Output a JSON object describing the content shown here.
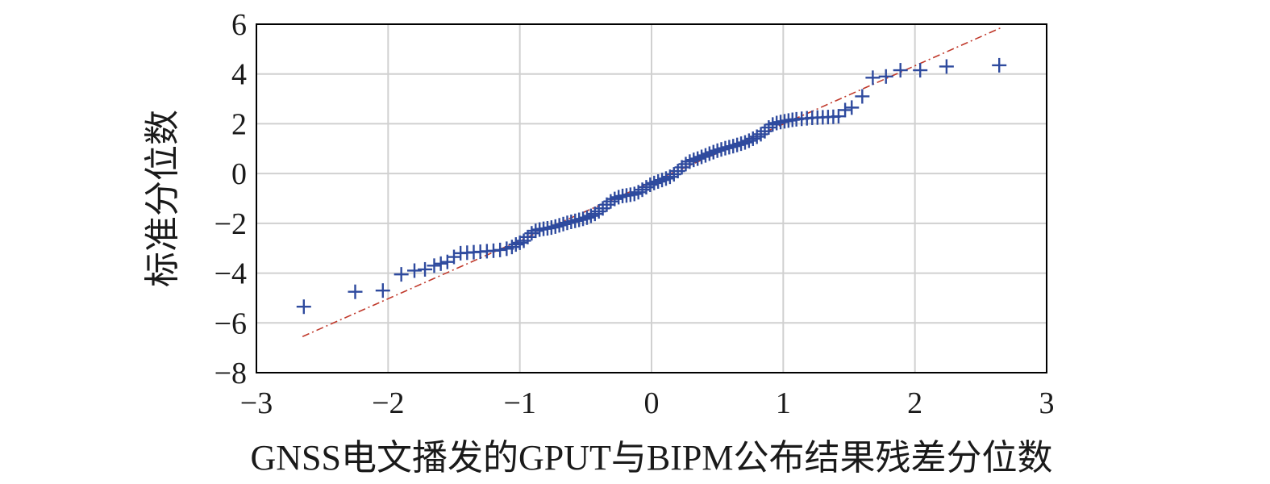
{
  "chart_data": {
    "type": "scatter",
    "title": "",
    "xlabel": "GNSS电文播发的GPUT与BIPM公布结果残差分位数",
    "ylabel": "标准分位数",
    "xlim": [
      -3,
      3
    ],
    "ylim": [
      -8,
      6
    ],
    "xticks": [
      -3,
      -2,
      -1,
      0,
      1,
      2,
      3
    ],
    "yticks": [
      -8,
      -6,
      -4,
      -2,
      0,
      2,
      4,
      6
    ],
    "xtick_labels": [
      "−3",
      "−2",
      "−1",
      "0",
      "1",
      "2",
      "3"
    ],
    "ytick_labels": [
      "−8",
      "−6",
      "−4",
      "−2",
      "0",
      "2",
      "4",
      "6"
    ],
    "grid": true,
    "legend": "none",
    "marker_color": "#2e4a9e",
    "line_color": "#c0392b",
    "reference_line": {
      "style": "dash-dot",
      "x": [
        -2.65,
        2.65
      ],
      "y": [
        -6.55,
        5.85
      ]
    },
    "points": [
      [
        -2.64,
        -5.35
      ],
      [
        -2.25,
        -4.75
      ],
      [
        -2.04,
        -4.7
      ],
      [
        -1.9,
        -4.05
      ],
      [
        -1.8,
        -3.9
      ],
      [
        -1.72,
        -3.85
      ],
      [
        -1.65,
        -3.7
      ],
      [
        -1.6,
        -3.62
      ],
      [
        -1.55,
        -3.55
      ],
      [
        -1.5,
        -3.35
      ],
      [
        -1.45,
        -3.2
      ],
      [
        -1.4,
        -3.18
      ],
      [
        -1.35,
        -3.16
      ],
      [
        -1.3,
        -3.14
      ],
      [
        -1.25,
        -3.12
      ],
      [
        -1.2,
        -3.1
      ],
      [
        -1.15,
        -3.07
      ],
      [
        -1.1,
        -3.02
      ],
      [
        -1.06,
        -2.95
      ],
      [
        -1.03,
        -2.85
      ],
      [
        -1.0,
        -2.78
      ],
      [
        -0.97,
        -2.7
      ],
      [
        -0.94,
        -2.55
      ],
      [
        -0.91,
        -2.4
      ],
      [
        -0.88,
        -2.3
      ],
      [
        -0.85,
        -2.25
      ],
      [
        -0.82,
        -2.22
      ],
      [
        -0.79,
        -2.2
      ],
      [
        -0.76,
        -2.17
      ],
      [
        -0.73,
        -2.13
      ],
      [
        -0.7,
        -2.08
      ],
      [
        -0.67,
        -2.03
      ],
      [
        -0.64,
        -1.98
      ],
      [
        -0.61,
        -1.94
      ],
      [
        -0.58,
        -1.9
      ],
      [
        -0.55,
        -1.86
      ],
      [
        -0.52,
        -1.82
      ],
      [
        -0.49,
        -1.77
      ],
      [
        -0.46,
        -1.7
      ],
      [
        -0.43,
        -1.62
      ],
      [
        -0.4,
        -1.52
      ],
      [
        -0.37,
        -1.4
      ],
      [
        -0.34,
        -1.25
      ],
      [
        -0.31,
        -1.12
      ],
      [
        -0.28,
        -1.02
      ],
      [
        -0.25,
        -0.95
      ],
      [
        -0.22,
        -0.9
      ],
      [
        -0.19,
        -0.88
      ],
      [
        -0.16,
        -0.85
      ],
      [
        -0.13,
        -0.82
      ],
      [
        -0.1,
        -0.75
      ],
      [
        -0.07,
        -0.65
      ],
      [
        -0.04,
        -0.55
      ],
      [
        -0.01,
        -0.45
      ],
      [
        0.02,
        -0.38
      ],
      [
        0.05,
        -0.32
      ],
      [
        0.08,
        -0.26
      ],
      [
        0.11,
        -0.2
      ],
      [
        0.14,
        -0.13
      ],
      [
        0.17,
        -0.03
      ],
      [
        0.2,
        0.1
      ],
      [
        0.23,
        0.25
      ],
      [
        0.26,
        0.38
      ],
      [
        0.29,
        0.48
      ],
      [
        0.32,
        0.55
      ],
      [
        0.35,
        0.6
      ],
      [
        0.38,
        0.67
      ],
      [
        0.41,
        0.73
      ],
      [
        0.44,
        0.8
      ],
      [
        0.47,
        0.86
      ],
      [
        0.5,
        0.92
      ],
      [
        0.53,
        0.97
      ],
      [
        0.56,
        1.02
      ],
      [
        0.59,
        1.06
      ],
      [
        0.62,
        1.1
      ],
      [
        0.65,
        1.15
      ],
      [
        0.68,
        1.2
      ],
      [
        0.71,
        1.25
      ],
      [
        0.74,
        1.32
      ],
      [
        0.77,
        1.4
      ],
      [
        0.8,
        1.48
      ],
      [
        0.83,
        1.58
      ],
      [
        0.86,
        1.7
      ],
      [
        0.89,
        1.85
      ],
      [
        0.92,
        1.97
      ],
      [
        0.95,
        2.03
      ],
      [
        0.98,
        2.07
      ],
      [
        1.01,
        2.1
      ],
      [
        1.04,
        2.13
      ],
      [
        1.07,
        2.16
      ],
      [
        1.1,
        2.18
      ],
      [
        1.14,
        2.2
      ],
      [
        1.18,
        2.22
      ],
      [
        1.22,
        2.24
      ],
      [
        1.26,
        2.25
      ],
      [
        1.3,
        2.26
      ],
      [
        1.34,
        2.27
      ],
      [
        1.38,
        2.28
      ],
      [
        1.42,
        2.3
      ],
      [
        1.47,
        2.55
      ],
      [
        1.52,
        2.65
      ],
      [
        1.6,
        3.1
      ],
      [
        1.68,
        3.85
      ],
      [
        1.78,
        3.9
      ],
      [
        1.89,
        4.15
      ],
      [
        2.04,
        4.15
      ],
      [
        2.24,
        4.3
      ],
      [
        2.64,
        4.35
      ]
    ]
  }
}
